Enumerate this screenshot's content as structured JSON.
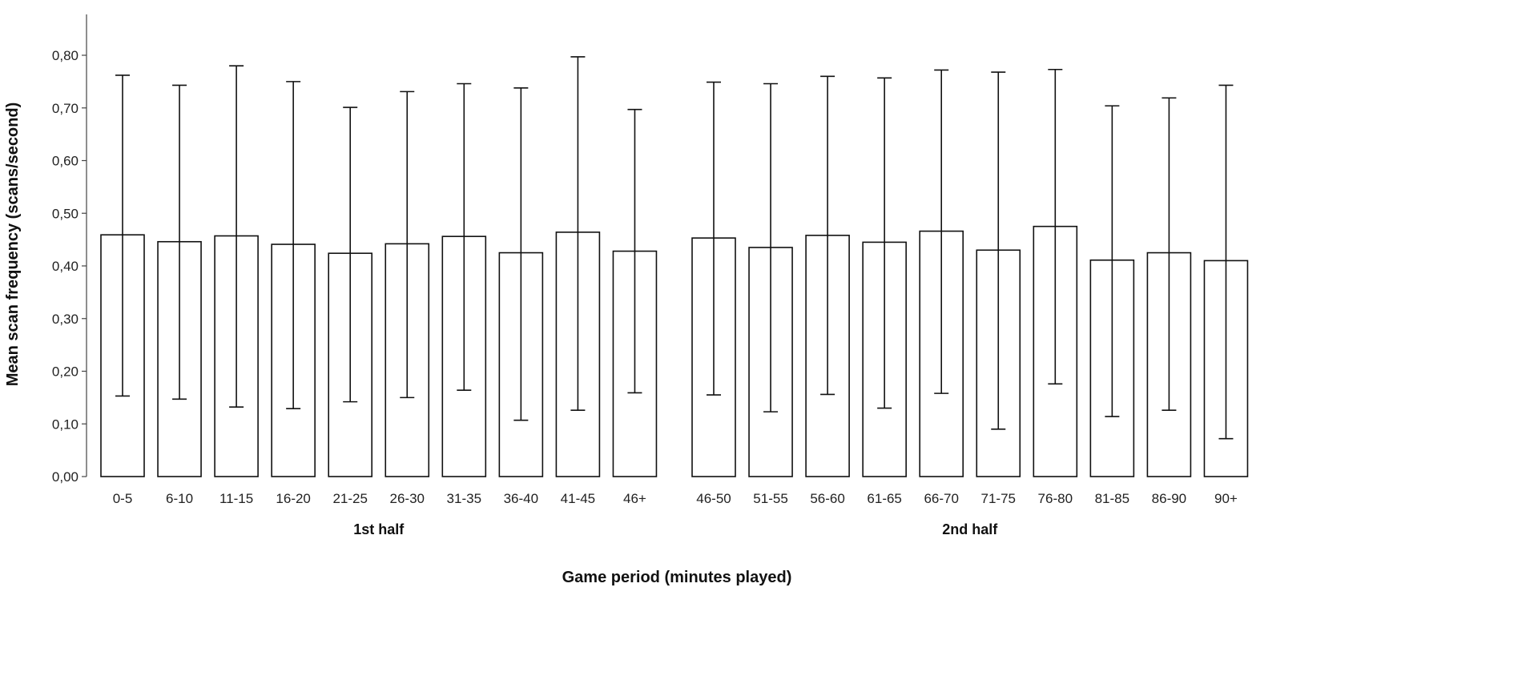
{
  "chart_data": {
    "type": "bar",
    "title": "",
    "xlabel": "Game period (minutes played)",
    "ylabel": "Mean scan frequency (scans/second)",
    "ylim": [
      0,
      0.88
    ],
    "yticks": [
      "0,00",
      "0,10",
      "0,20",
      "0,30",
      "0,40",
      "0,50",
      "0,60",
      "0,70",
      "0,80"
    ],
    "yticks_values": [
      0,
      0.1,
      0.2,
      0.3,
      0.4,
      0.5,
      0.6,
      0.7,
      0.8
    ],
    "error_bars": true,
    "groups": [
      {
        "label": "1st half",
        "categories": [
          "0-5",
          "6-10",
          "11-15",
          "16-20",
          "21-25",
          "26-30",
          "31-35",
          "36-40",
          "41-45",
          "46+"
        ],
        "values": [
          0.459,
          0.446,
          0.457,
          0.441,
          0.424,
          0.442,
          0.456,
          0.425,
          0.464,
          0.428
        ],
        "err_low": [
          0.153,
          0.147,
          0.132,
          0.129,
          0.142,
          0.15,
          0.164,
          0.107,
          0.126,
          0.159
        ],
        "err_high": [
          0.762,
          0.743,
          0.78,
          0.75,
          0.701,
          0.731,
          0.746,
          0.738,
          0.797,
          0.697
        ]
      },
      {
        "label": "2nd half",
        "categories": [
          "46-50",
          "51-55",
          "56-60",
          "61-65",
          "66-70",
          "71-75",
          "76-80",
          "81-85",
          "86-90",
          "90+"
        ],
        "values": [
          0.453,
          0.435,
          0.458,
          0.445,
          0.466,
          0.43,
          0.475,
          0.411,
          0.425,
          0.41
        ],
        "err_low": [
          0.155,
          0.123,
          0.156,
          0.13,
          0.158,
          0.09,
          0.176,
          0.114,
          0.126,
          0.072
        ],
        "err_high": [
          0.749,
          0.746,
          0.76,
          0.757,
          0.772,
          0.768,
          0.773,
          0.704,
          0.719,
          0.743
        ]
      }
    ]
  }
}
